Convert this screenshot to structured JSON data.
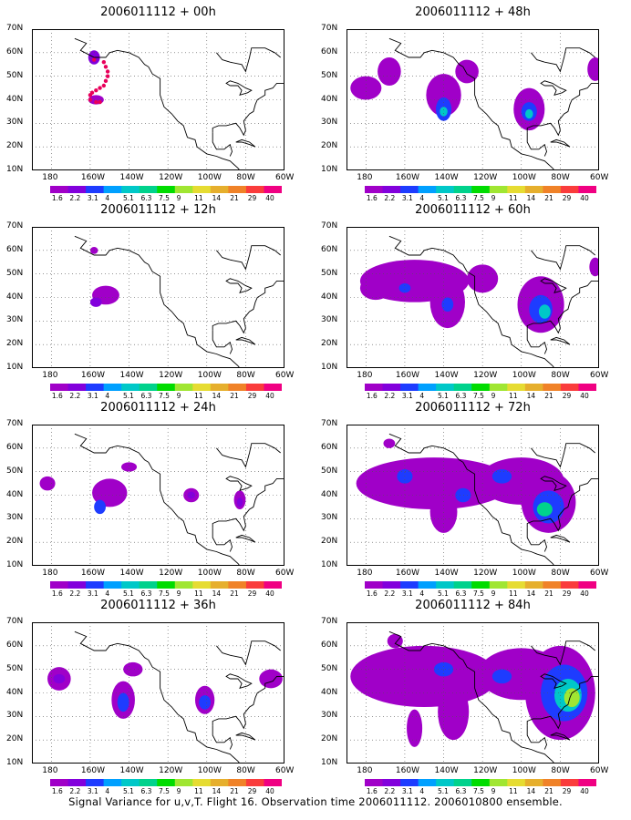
{
  "panels": [
    {
      "title": "2006011112 + 00h",
      "hours": "00h",
      "blobs": [
        {
          "lon": -158,
          "lat": 58,
          "rx": 3,
          "ry": 3,
          "lvl": 2
        }
      ],
      "dots": [
        [
          -158,
          57
        ],
        [
          -153,
          56
        ],
        [
          -152,
          54
        ],
        [
          -151,
          52
        ],
        [
          -151,
          50
        ],
        [
          -152,
          48
        ],
        [
          -153,
          46
        ],
        [
          -155,
          45
        ],
        [
          -157,
          44
        ],
        [
          -159,
          43
        ],
        [
          -160,
          42
        ],
        [
          -160,
          40
        ],
        [
          -157,
          39
        ],
        [
          -155,
          39
        ]
      ],
      "blob2": [
        {
          "lon": -157,
          "lat": 40,
          "rx": 4,
          "ry": 2,
          "lvl": 1
        }
      ]
    },
    {
      "title": "2006011112 + 12h",
      "hours": "12h",
      "blobs": [
        {
          "lon": -158,
          "lat": 60,
          "rx": 2,
          "ry": 1.5,
          "lvl": 1
        },
        {
          "lon": -152,
          "lat": 41,
          "rx": 7,
          "ry": 4,
          "lvl": 1
        },
        {
          "lon": -157,
          "lat": 38,
          "rx": 3,
          "ry": 2,
          "lvl": 2
        }
      ]
    },
    {
      "title": "2006011112 + 24h",
      "hours": "24h",
      "blobs": [
        {
          "lon": -182,
          "lat": 45,
          "rx": 4,
          "ry": 3,
          "lvl": 1
        },
        {
          "lon": -150,
          "lat": 41,
          "rx": 9,
          "ry": 6,
          "lvl": 1
        },
        {
          "lon": -155,
          "lat": 35,
          "rx": 3,
          "ry": 3,
          "lvl": 3
        },
        {
          "lon": -140,
          "lat": 52,
          "rx": 4,
          "ry": 2,
          "lvl": 1
        },
        {
          "lon": -108,
          "lat": 40,
          "rx": 4,
          "ry": 3,
          "lvl": 1
        },
        {
          "lon": -108,
          "lat": 40,
          "rx": 2,
          "ry": 1.5,
          "lvl": 2
        },
        {
          "lon": -83,
          "lat": 38,
          "rx": 3,
          "ry": 4,
          "lvl": 1
        },
        {
          "lon": -83,
          "lat": 37,
          "rx": 1.5,
          "ry": 2,
          "lvl": 2
        }
      ]
    },
    {
      "title": "2006011112 + 36h",
      "hours": "36h",
      "blobs": [
        {
          "lon": -176,
          "lat": 46,
          "rx": 6,
          "ry": 5,
          "lvl": 1
        },
        {
          "lon": -176,
          "lat": 46,
          "rx": 3,
          "ry": 2,
          "lvl": 2
        },
        {
          "lon": -143,
          "lat": 37,
          "rx": 6,
          "ry": 8,
          "lvl": 1
        },
        {
          "lon": -143,
          "lat": 36,
          "rx": 3,
          "ry": 4,
          "lvl": 3
        },
        {
          "lon": -138,
          "lat": 50,
          "rx": 5,
          "ry": 3,
          "lvl": 1
        },
        {
          "lon": -101,
          "lat": 37,
          "rx": 5,
          "ry": 6,
          "lvl": 1
        },
        {
          "lon": -101,
          "lat": 36,
          "rx": 3,
          "ry": 3,
          "lvl": 3
        },
        {
          "lon": -67,
          "lat": 46,
          "rx": 6,
          "ry": 4,
          "lvl": 1
        }
      ]
    },
    {
      "title": "2006011112 + 48h",
      "hours": "48h",
      "blobs": [
        {
          "lon": -180,
          "lat": 45,
          "rx": 8,
          "ry": 5,
          "lvl": 1
        },
        {
          "lon": -168,
          "lat": 52,
          "rx": 6,
          "ry": 6,
          "lvl": 1
        },
        {
          "lon": -140,
          "lat": 42,
          "rx": 9,
          "ry": 9,
          "lvl": 1
        },
        {
          "lon": -140,
          "lat": 36,
          "rx": 4,
          "ry": 5,
          "lvl": 3
        },
        {
          "lon": -140,
          "lat": 35,
          "rx": 2,
          "ry": 2,
          "lvl": 5
        },
        {
          "lon": -128,
          "lat": 52,
          "rx": 6,
          "ry": 5,
          "lvl": 1
        },
        {
          "lon": -96,
          "lat": 36,
          "rx": 8,
          "ry": 9,
          "lvl": 1
        },
        {
          "lon": -96,
          "lat": 35,
          "rx": 4,
          "ry": 4,
          "lvl": 3
        },
        {
          "lon": -96,
          "lat": 34,
          "rx": 2,
          "ry": 2,
          "lvl": 5
        },
        {
          "lon": -62,
          "lat": 53,
          "rx": 4,
          "ry": 5,
          "lvl": 1
        }
      ]
    },
    {
      "title": "2006011112 + 60h",
      "hours": "60h",
      "blobs": [
        {
          "lon": -155,
          "lat": 47,
          "rx": 28,
          "ry": 9,
          "lvl": 1
        },
        {
          "lon": -175,
          "lat": 44,
          "rx": 8,
          "ry": 5,
          "lvl": 1
        },
        {
          "lon": -138,
          "lat": 38,
          "rx": 9,
          "ry": 11,
          "lvl": 1
        },
        {
          "lon": -138,
          "lat": 37,
          "rx": 3,
          "ry": 3,
          "lvl": 3
        },
        {
          "lon": -160,
          "lat": 44,
          "rx": 3,
          "ry": 2,
          "lvl": 3
        },
        {
          "lon": -120,
          "lat": 48,
          "rx": 8,
          "ry": 6,
          "lvl": 1
        },
        {
          "lon": -90,
          "lat": 37,
          "rx": 12,
          "ry": 12,
          "lvl": 1
        },
        {
          "lon": -90,
          "lat": 35,
          "rx": 6,
          "ry": 6,
          "lvl": 3
        },
        {
          "lon": -88,
          "lat": 34,
          "rx": 3,
          "ry": 3,
          "lvl": 5
        },
        {
          "lon": -62,
          "lat": 53,
          "rx": 3,
          "ry": 4,
          "lvl": 1
        }
      ]
    },
    {
      "title": "2006011112 + 72h",
      "hours": "72h",
      "blobs": [
        {
          "lon": -145,
          "lat": 45,
          "rx": 40,
          "ry": 11,
          "lvl": 1
        },
        {
          "lon": -100,
          "lat": 46,
          "rx": 22,
          "ry": 10,
          "lvl": 1
        },
        {
          "lon": -140,
          "lat": 33,
          "rx": 7,
          "ry": 9,
          "lvl": 1
        },
        {
          "lon": -86,
          "lat": 37,
          "rx": 14,
          "ry": 13,
          "lvl": 1
        },
        {
          "lon": -86,
          "lat": 35,
          "rx": 8,
          "ry": 7,
          "lvl": 3
        },
        {
          "lon": -88,
          "lat": 34,
          "rx": 4,
          "ry": 3,
          "lvl": 6
        },
        {
          "lon": -160,
          "lat": 48,
          "rx": 4,
          "ry": 3,
          "lvl": 3
        },
        {
          "lon": -110,
          "lat": 48,
          "rx": 5,
          "ry": 3,
          "lvl": 3
        },
        {
          "lon": -130,
          "lat": 40,
          "rx": 4,
          "ry": 3,
          "lvl": 3
        },
        {
          "lon": -168,
          "lat": 62,
          "rx": 3,
          "ry": 2,
          "lvl": 1
        }
      ]
    },
    {
      "title": "2006011112 + 84h",
      "hours": "84h",
      "blobs": [
        {
          "lon": -150,
          "lat": 47,
          "rx": 38,
          "ry": 13,
          "lvl": 1
        },
        {
          "lon": -100,
          "lat": 48,
          "rx": 22,
          "ry": 11,
          "lvl": 1
        },
        {
          "lon": -135,
          "lat": 32,
          "rx": 8,
          "ry": 12,
          "lvl": 1
        },
        {
          "lon": -155,
          "lat": 25,
          "rx": 4,
          "ry": 8,
          "lvl": 1
        },
        {
          "lon": -80,
          "lat": 40,
          "rx": 18,
          "ry": 20,
          "lvl": 1
        },
        {
          "lon": -78,
          "lat": 40,
          "rx": 12,
          "ry": 12,
          "lvl": 3
        },
        {
          "lon": -76,
          "lat": 39,
          "rx": 7,
          "ry": 7,
          "lvl": 5
        },
        {
          "lon": -74,
          "lat": 38,
          "rx": 4,
          "ry": 4,
          "lvl": 7
        },
        {
          "lon": -140,
          "lat": 50,
          "rx": 5,
          "ry": 3,
          "lvl": 3
        },
        {
          "lon": -110,
          "lat": 47,
          "rx": 5,
          "ry": 3,
          "lvl": 3
        },
        {
          "lon": -165,
          "lat": 62,
          "rx": 4,
          "ry": 3,
          "lvl": 1
        }
      ]
    }
  ],
  "axes": {
    "y_ticks": [
      "70N",
      "60N",
      "50N",
      "40N",
      "30N",
      "20N",
      "10N"
    ],
    "x_ticks": [
      "180",
      "160W",
      "140W",
      "120W",
      "100W",
      "80W",
      "60W"
    ]
  },
  "colorbar": {
    "labels": [
      "1.6",
      "2.2",
      "3.1",
      "4",
      "5.1",
      "6.3",
      "7.5",
      "9",
      "11",
      "14",
      "21",
      "29",
      "40"
    ],
    "colors": [
      "#a000c8",
      "#8200dc",
      "#1e3cff",
      "#00a0ff",
      "#00c8c8",
      "#00d28c",
      "#00dc00",
      "#a0e632",
      "#e6dc32",
      "#e6af2d",
      "#f08228",
      "#fa3c3c",
      "#f00082"
    ]
  },
  "footer": "Signal Variance for u,v,T. Flight 16. Observation time 2006011112. 2006010800 ensemble."
}
